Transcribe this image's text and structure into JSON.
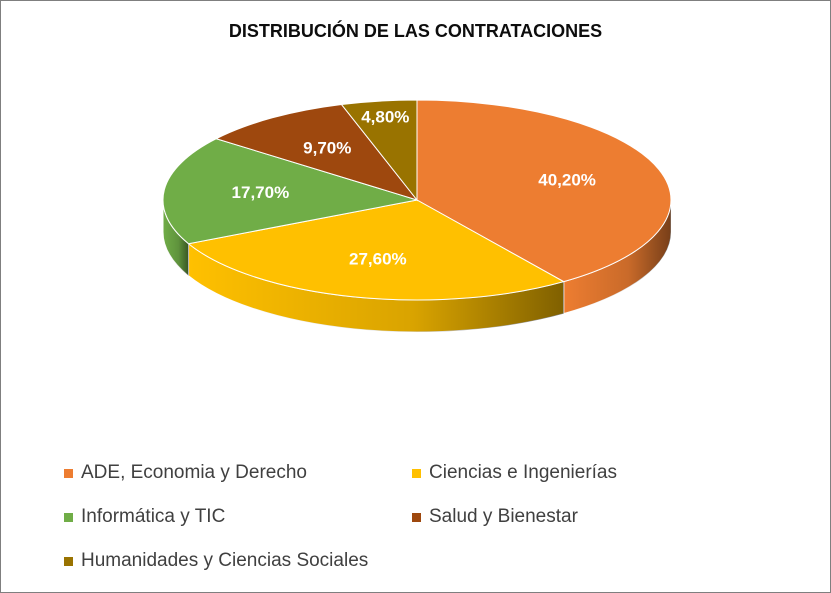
{
  "chart_data": {
    "type": "pie",
    "title": "DISTRIBUCIÓN DE LAS CONTRATACIONES",
    "three_d": true,
    "legend_position": "bottom",
    "slices": [
      {
        "name": "ADE, Economia y Derecho",
        "value": 40.2,
        "label": "40,20%",
        "color": "#ed7d31",
        "side_color": "#5e2d12"
      },
      {
        "name": "Ciencias e Ingenierías",
        "value": 27.6,
        "label": "27,60%",
        "color": "#ffc000",
        "side_color": "#8a6500"
      },
      {
        "name": "Informática y TIC",
        "value": 17.7,
        "label": "17,70%",
        "color": "#70ad47",
        "side_color": "#3d5f26"
      },
      {
        "name": "Salud y Bienestar",
        "value": 9.7,
        "label": "9,70%",
        "color": "#9e480e",
        "side_color": "#4e2306"
      },
      {
        "name": "Humanidades y Ciencias Sociales",
        "value": 4.8,
        "label": "4,80%",
        "color": "#997300",
        "side_color": "#4a3800"
      }
    ]
  }
}
